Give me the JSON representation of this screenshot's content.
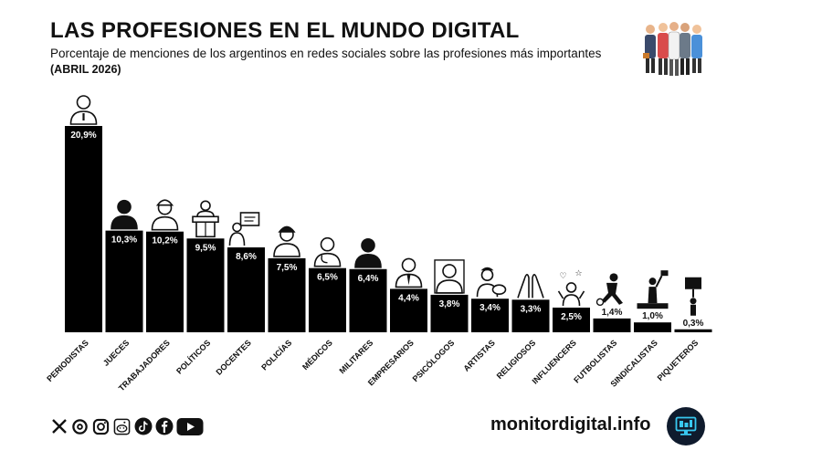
{
  "header": {
    "title": "LAS PROFESIONES EN EL MUNDO DIGITAL",
    "subtitle": "Porcentaje de menciones de los argentinos en redes sociales sobre las profesiones más importantes",
    "date": "(ABRIL 2026)"
  },
  "footer": {
    "site": "monitordigital.info",
    "social_icons": [
      "x-icon",
      "threads-icon",
      "instagram-icon",
      "reddit-icon",
      "tiktok-icon",
      "facebook-icon",
      "youtube-icon"
    ]
  },
  "colors": {
    "bar": "#000000",
    "label_text": "#ffffff",
    "logo_bg": "#0f1b2d",
    "logo_accent": "#38c8f0"
  },
  "chart_data": {
    "type": "bar",
    "categories": [
      "PERIODISTAS",
      "JUECES",
      "TRABAJADORES",
      "POLÍTICOS",
      "DOCENTES",
      "POLICÍAS",
      "MÉDICOS",
      "MILITARES",
      "EMPRESARIOS",
      "PSICÓLOGOS",
      "ARTISTAS",
      "RELIGIOSOS",
      "INFLUENCERS",
      "FUTBOLISTAS",
      "SINDICALISTAS",
      "PIQUETEROS"
    ],
    "values": [
      20.9,
      10.3,
      10.2,
      9.5,
      8.6,
      7.5,
      6.5,
      6.4,
      4.4,
      3.8,
      3.4,
      3.3,
      2.5,
      1.4,
      1.0,
      0.3
    ],
    "value_labels": [
      "20,9%",
      "10,3%",
      "10,2%",
      "9,5%",
      "8,6%",
      "7,5%",
      "6,5%",
      "6,4%",
      "4,4%",
      "3,8%",
      "3,4%",
      "3,3%",
      "2,5%",
      "1,4%",
      "1,0%",
      "0,3%"
    ],
    "icons": [
      "journalist-icon",
      "judge-icon",
      "worker-icon",
      "politician-icon",
      "teacher-icon",
      "police-icon",
      "doctor-icon",
      "soldier-icon",
      "businessman-icon",
      "psychologist-icon",
      "artist-icon",
      "praying-hands-icon",
      "influencer-icon",
      "footballer-icon",
      "unionist-icon",
      "protester-icon"
    ],
    "ylim": [
      0,
      21
    ],
    "grid": false,
    "legend": "none"
  }
}
